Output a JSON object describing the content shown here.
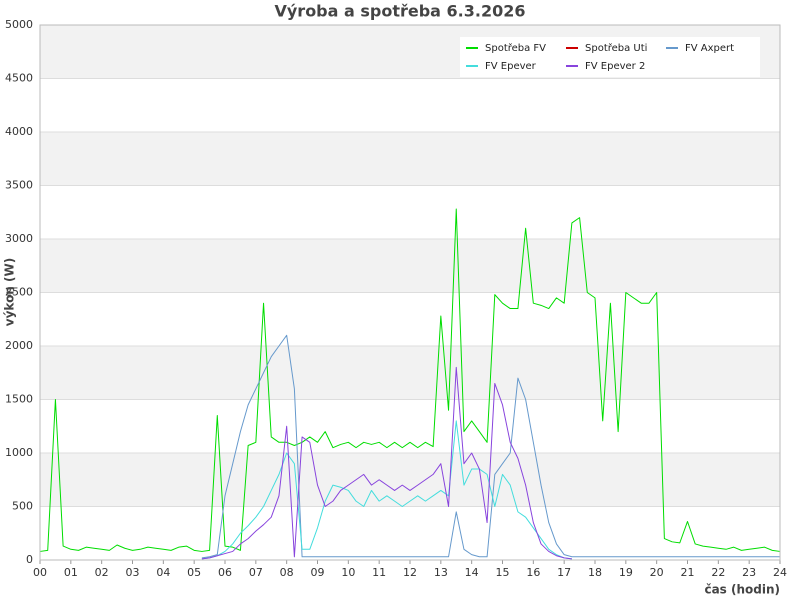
{
  "chart_data": {
    "type": "line",
    "title": "Výroba a spotřeba 6.3.2026",
    "xlabel": "čas (hodin)",
    "ylabel": "výkon (W)",
    "grid": true,
    "legend": "top-right",
    "xlim": [
      0,
      24
    ],
    "ylim": [
      0,
      5000
    ],
    "yticks": [
      0,
      500,
      1000,
      1500,
      2000,
      2500,
      3000,
      3500,
      4000,
      4500,
      5000
    ],
    "xticks": [
      {
        "value": 0,
        "label": "00"
      },
      {
        "value": 1,
        "label": "01"
      },
      {
        "value": 2,
        "label": "02"
      },
      {
        "value": 3,
        "label": "03"
      },
      {
        "value": 4,
        "label": "04"
      },
      {
        "value": 5,
        "label": "05"
      },
      {
        "value": 6,
        "label": "06"
      },
      {
        "value": 7,
        "label": "07"
      },
      {
        "value": 8,
        "label": "08"
      },
      {
        "value": 9,
        "label": "09"
      },
      {
        "value": 10,
        "label": "10"
      },
      {
        "value": 11,
        "label": "11"
      },
      {
        "value": 12,
        "label": "12"
      },
      {
        "value": 13,
        "label": "13"
      },
      {
        "value": 14,
        "label": "14"
      },
      {
        "value": 15,
        "label": "15"
      },
      {
        "value": 16,
        "label": "16"
      },
      {
        "value": 17,
        "label": "17"
      },
      {
        "value": 18,
        "label": "18"
      },
      {
        "value": 19,
        "label": "19"
      },
      {
        "value": 20,
        "label": "20"
      },
      {
        "value": 21,
        "label": "21"
      },
      {
        "value": 22,
        "label": "22"
      },
      {
        "value": 23,
        "label": "23"
      },
      {
        "value": 24,
        "label": "24"
      }
    ],
    "x": [
      0,
      0.25,
      0.5,
      0.75,
      1,
      1.25,
      1.5,
      1.75,
      2,
      2.25,
      2.5,
      2.75,
      3,
      3.25,
      3.5,
      3.75,
      4,
      4.25,
      4.5,
      4.75,
      5,
      5.25,
      5.5,
      5.75,
      6,
      6.25,
      6.5,
      6.75,
      7,
      7.25,
      7.5,
      7.75,
      8,
      8.25,
      8.5,
      8.75,
      9,
      9.25,
      9.5,
      9.75,
      10,
      10.25,
      10.5,
      10.75,
      11,
      11.25,
      11.5,
      11.75,
      12,
      12.25,
      12.5,
      12.75,
      13,
      13.25,
      13.5,
      13.75,
      14,
      14.25,
      14.5,
      14.75,
      15,
      15.25,
      15.5,
      15.75,
      16,
      16.25,
      16.5,
      16.75,
      17,
      17.25,
      17.5,
      17.75,
      18,
      18.25,
      18.5,
      18.75,
      19,
      19.25,
      19.5,
      19.75,
      20,
      20.25,
      20.5,
      20.75,
      21,
      21.25,
      21.5,
      21.75,
      22,
      22.25,
      22.5,
      22.75,
      23,
      23.25,
      23.5,
      23.75,
      24
    ],
    "series": [
      {
        "name": "Spotřeba FV",
        "color": "#00dd00",
        "values": [
          80,
          90,
          1500,
          130,
          100,
          90,
          120,
          110,
          100,
          90,
          140,
          110,
          90,
          100,
          120,
          110,
          100,
          90,
          120,
          130,
          90,
          80,
          90,
          1350,
          130,
          120,
          90,
          1070,
          1100,
          2400,
          1150,
          1100,
          1100,
          1070,
          1100,
          1150,
          1100,
          1200,
          1050,
          1080,
          1100,
          1050,
          1100,
          1080,
          1100,
          1050,
          1100,
          1050,
          1100,
          1050,
          1100,
          1060,
          2280,
          1400,
          3280,
          1200,
          1300,
          1200,
          1100,
          2480,
          2400,
          2350,
          2350,
          3100,
          2400,
          2380,
          2350,
          2450,
          2400,
          3150,
          3200,
          2500,
          2450,
          1300,
          2400,
          1200,
          2500,
          2450,
          2400,
          2400,
          2500,
          200,
          170,
          160,
          360,
          150,
          130,
          120,
          110,
          100,
          120,
          90,
          100,
          110,
          120,
          90,
          80
        ]
      },
      {
        "name": "Spotřeba Uti",
        "color": "#cc0000",
        "values": [
          null,
          null,
          null,
          null,
          null,
          null,
          null,
          null,
          null,
          null,
          null,
          null,
          null,
          null,
          null,
          null,
          null,
          null,
          null,
          null,
          null,
          null,
          null,
          null,
          null,
          null,
          null,
          null,
          null,
          null,
          null,
          null,
          null,
          null,
          null,
          null,
          null,
          null,
          null,
          null,
          null,
          null,
          null,
          null,
          null,
          null,
          null,
          null,
          null,
          null,
          null,
          null,
          null,
          null,
          null,
          null,
          null,
          null,
          null,
          null,
          null,
          null,
          null,
          null,
          null,
          null,
          null,
          null,
          null,
          null,
          null,
          null,
          null,
          null,
          null,
          null,
          null,
          null,
          null,
          null,
          null,
          null,
          null,
          null,
          null,
          null,
          null,
          null,
          null,
          null,
          null,
          null,
          null,
          null,
          null,
          null,
          null
        ]
      },
      {
        "name": "FV Axpert",
        "color": "#6699cc",
        "values": [
          null,
          null,
          null,
          null,
          null,
          null,
          null,
          null,
          null,
          null,
          null,
          null,
          null,
          null,
          null,
          null,
          null,
          null,
          null,
          null,
          null,
          20,
          30,
          50,
          600,
          900,
          1200,
          1450,
          1600,
          1750,
          1900,
          2000,
          2100,
          1600,
          30,
          30,
          30,
          30,
          30,
          30,
          30,
          30,
          30,
          30,
          30,
          30,
          30,
          30,
          30,
          30,
          30,
          30,
          30,
          30,
          450,
          100,
          50,
          30,
          30,
          800,
          900,
          1000,
          1700,
          1500,
          1100,
          700,
          350,
          150,
          50,
          30,
          30,
          30,
          30,
          30,
          30,
          30,
          30,
          30,
          30,
          30,
          30,
          30,
          30,
          30,
          30,
          30,
          30,
          30,
          30,
          30,
          30,
          30,
          30,
          30,
          30,
          30,
          30
        ]
      },
      {
        "name": "FV Epever",
        "color": "#44dddd",
        "values": [
          null,
          null,
          null,
          null,
          null,
          null,
          null,
          null,
          null,
          null,
          null,
          null,
          null,
          null,
          null,
          null,
          null,
          null,
          null,
          null,
          null,
          10,
          20,
          40,
          80,
          150,
          250,
          320,
          400,
          500,
          650,
          800,
          1000,
          900,
          100,
          100,
          300,
          550,
          700,
          680,
          650,
          550,
          500,
          650,
          550,
          600,
          550,
          500,
          550,
          600,
          550,
          600,
          650,
          600,
          1300,
          700,
          850,
          850,
          800,
          500,
          800,
          700,
          450,
          400,
          300,
          200,
          100,
          50,
          20,
          10,
          null,
          null,
          null,
          null,
          null,
          null,
          null,
          null,
          null,
          null,
          null,
          null,
          null,
          null,
          null,
          null,
          null,
          null,
          null,
          null,
          null,
          null,
          null,
          null,
          null,
          null,
          null
        ]
      },
      {
        "name": "FV Epever 2",
        "color": "#8844dd",
        "values": [
          null,
          null,
          null,
          null,
          null,
          null,
          null,
          null,
          null,
          null,
          null,
          null,
          null,
          null,
          null,
          null,
          null,
          null,
          null,
          null,
          null,
          10,
          20,
          40,
          60,
          80,
          150,
          200,
          270,
          330,
          400,
          600,
          1250,
          30,
          1150,
          1100,
          700,
          500,
          550,
          650,
          700,
          750,
          800,
          700,
          750,
          700,
          650,
          700,
          650,
          700,
          750,
          800,
          900,
          500,
          1800,
          900,
          1000,
          850,
          350,
          1650,
          1450,
          1100,
          950,
          700,
          350,
          150,
          80,
          40,
          20,
          10,
          null,
          null,
          null,
          null,
          null,
          null,
          null,
          null,
          null,
          null,
          null,
          null,
          null,
          null,
          null,
          null,
          null,
          null,
          null,
          null,
          null,
          null,
          null,
          null,
          null,
          null,
          null
        ]
      }
    ]
  }
}
